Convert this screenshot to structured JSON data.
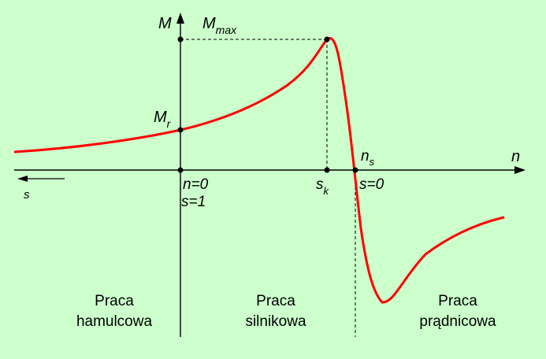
{
  "axes": {
    "y_label": "M",
    "x_label": "n",
    "s_arrow_label": "s"
  },
  "points": {
    "m_max": {
      "base": "M",
      "sub": "max"
    },
    "m_r": {
      "base": "M",
      "sub": "r"
    },
    "s_k": {
      "base": "s",
      "sub": "k"
    },
    "n_s": {
      "base": "n",
      "sub": "s"
    },
    "origin_n": "n=0",
    "origin_s": "s=1",
    "sync_s": "s=0"
  },
  "regions": [
    {
      "line1": "Praca",
      "line2": "hamulcowa"
    },
    {
      "line1": "Praca",
      "line2": "silnikowa"
    },
    {
      "line1": "Praca",
      "line2": "prądnicowa"
    }
  ],
  "colors": {
    "background": "#ccffcc",
    "curve": "#ff0000",
    "ink": "#000000"
  }
}
